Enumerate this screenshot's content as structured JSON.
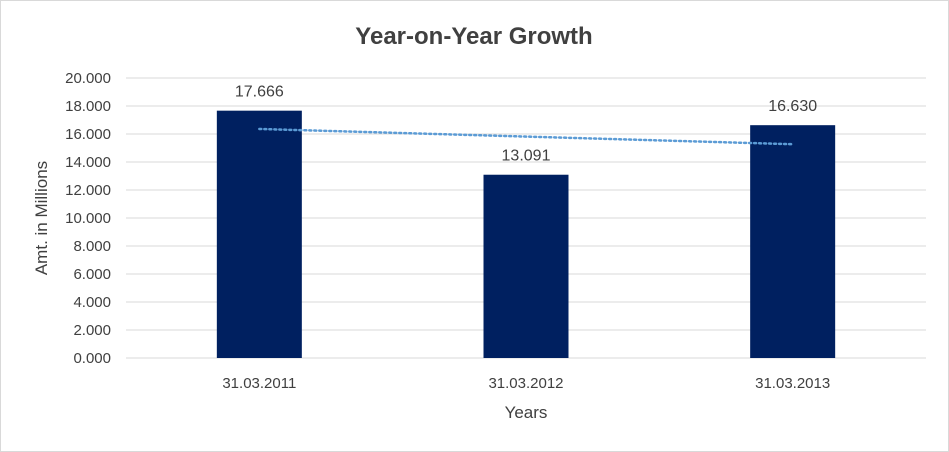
{
  "chart_data": {
    "type": "bar",
    "title": "Year-on-Year Growth",
    "xlabel": "Years",
    "ylabel": "Amt. in Millions",
    "categories": [
      "31.03.2011",
      "31.03.2012",
      "31.03.2013"
    ],
    "values": [
      17.666,
      13.091,
      16.63
    ],
    "data_labels": [
      "17.666",
      "13.091",
      "16.630"
    ],
    "ylim": [
      0,
      20
    ],
    "y_ticks": [
      0,
      2,
      4,
      6,
      8,
      10,
      12,
      14,
      16,
      18,
      20
    ],
    "y_tick_labels": [
      "0.000",
      "2.000",
      "4.000",
      "6.000",
      "8.000",
      "10.000",
      "12.000",
      "14.000",
      "16.000",
      "18.000",
      "20.000"
    ],
    "trendline": {
      "type": "linear",
      "style": "dotted",
      "start": 16.36,
      "end": 15.27
    },
    "grid": true,
    "colors": {
      "bar": "#002060",
      "trendline": "#5b9bd5",
      "grid": "#d9d9d9",
      "text": "#404040"
    }
  }
}
